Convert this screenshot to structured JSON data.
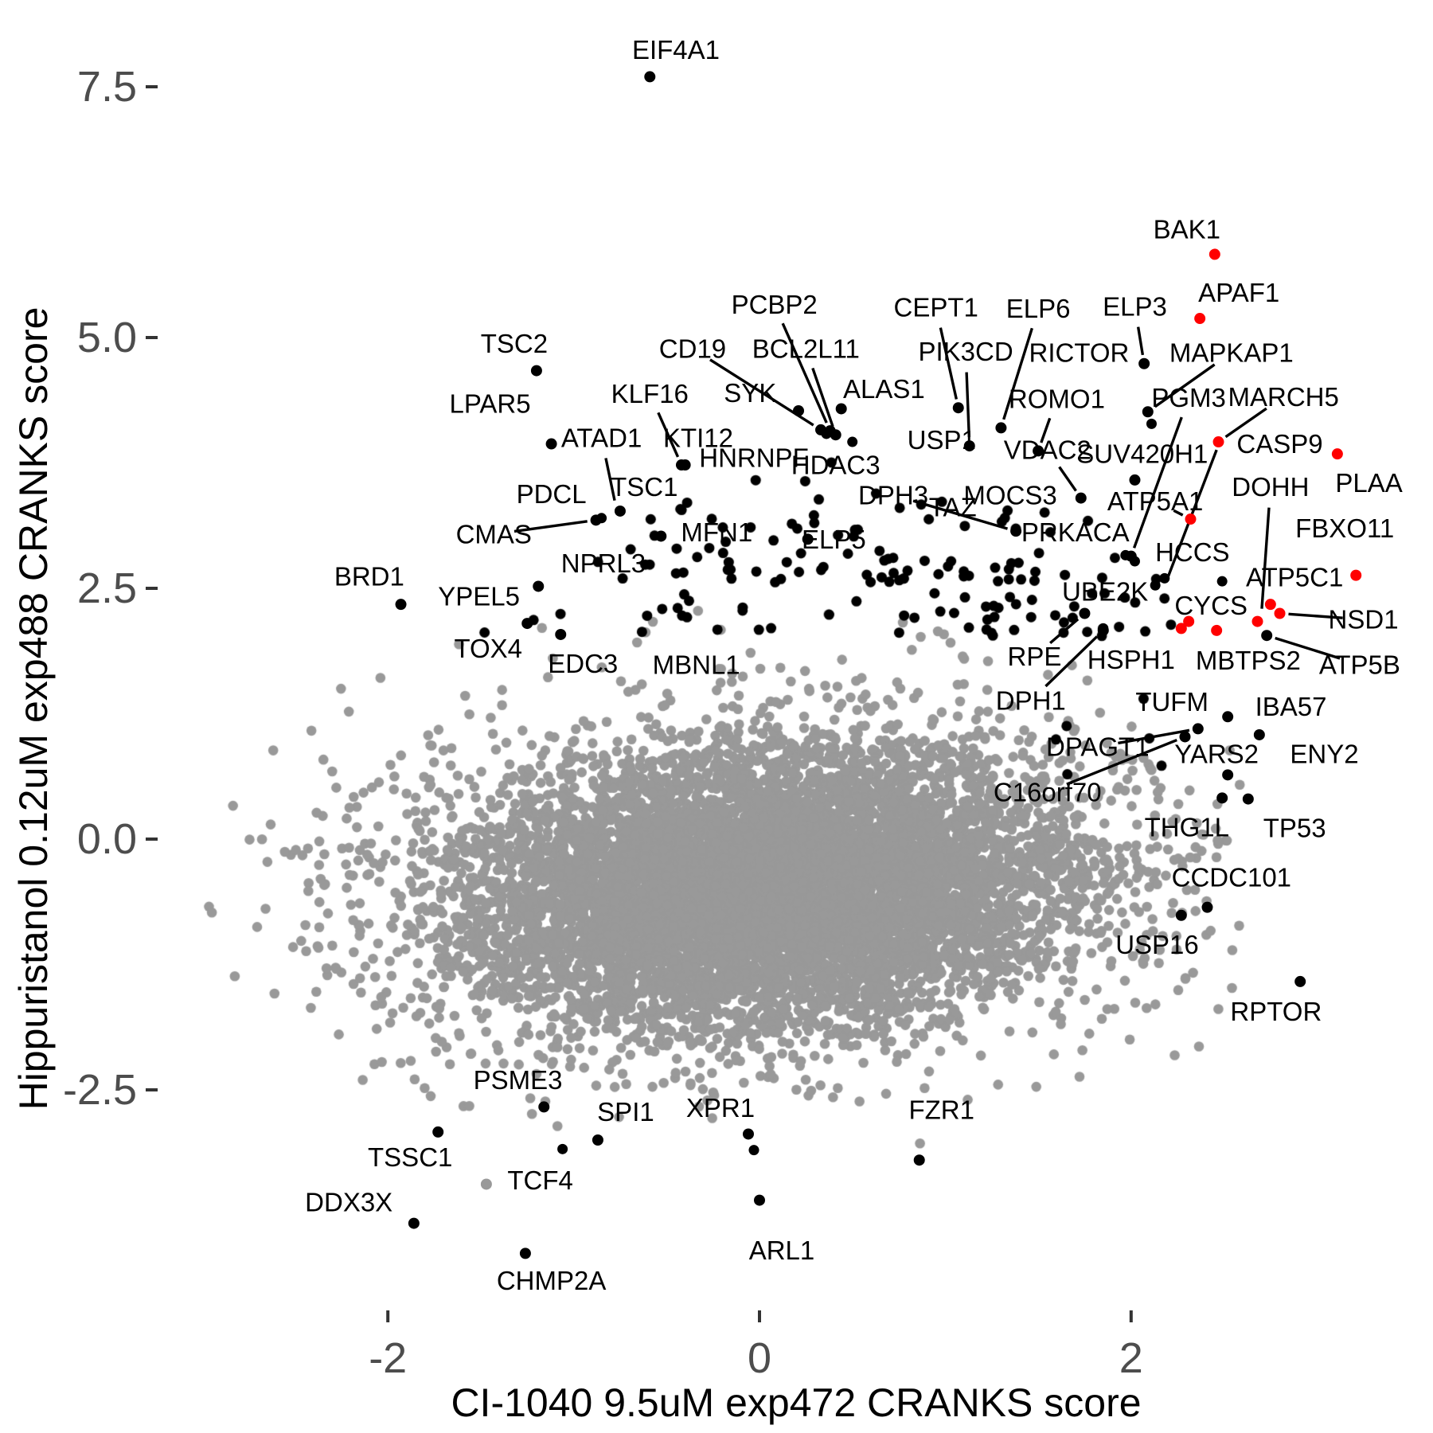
{
  "chart_data": {
    "type": "scatter",
    "title": "",
    "xlabel": "CI-1040 9.5uM exp472 CRANKS score",
    "ylabel": "Hippuristanol 0.12uM exp488 CRANKS score",
    "x_ticks": [
      -2,
      0,
      2
    ],
    "y_ticks": [
      -2.5,
      0.0,
      2.5,
      5.0,
      7.5
    ],
    "x_range": [
      -3.2,
      3.6
    ],
    "y_range": [
      -4.7,
      7.95
    ],
    "grid": false,
    "legend": "none",
    "colors": {
      "background_points": "#999999",
      "hit_points": "#000000",
      "selected_points": "#FF0000",
      "tick_text": "#4D4D4D",
      "tick_mark": "#333333",
      "axis_title": "#000000",
      "label_text": "#000000"
    },
    "labeled_points": [
      {
        "name": "EIF4A1",
        "label": [
          -0.45,
          7.87
        ],
        "dot": [
          -0.59,
          7.6
        ],
        "color": "black",
        "line": false
      },
      {
        "name": "BAK1",
        "label": [
          2.3,
          6.08
        ],
        "dot": [
          2.45,
          5.83
        ],
        "color": "red",
        "line": false
      },
      {
        "name": "APAF1",
        "label": [
          2.58,
          5.45
        ],
        "dot": [
          2.37,
          5.19
        ],
        "color": "red",
        "line": false
      },
      {
        "name": "TSC2",
        "label": [
          -1.32,
          4.94
        ],
        "dot": [
          -1.2,
          4.67
        ],
        "color": "black",
        "line": false
      },
      {
        "name": "PCBP2",
        "label": [
          0.08,
          5.33
        ],
        "dot": [
          0.38,
          4.07
        ],
        "color": "black",
        "line": true
      },
      {
        "name": "CEPT1",
        "label": [
          0.95,
          5.3
        ],
        "dot": [
          1.07,
          4.3
        ],
        "color": "black",
        "line": true
      },
      {
        "name": "ELP6",
        "label": [
          1.5,
          5.29
        ],
        "dot": [
          1.3,
          4.1
        ],
        "color": "black",
        "line": true
      },
      {
        "name": "ELP3",
        "label": [
          2.02,
          5.31
        ],
        "dot": [
          2.07,
          4.74
        ],
        "color": "black",
        "line": true
      },
      {
        "name": "CD19",
        "label": [
          -0.36,
          4.89
        ],
        "dot": [
          0.33,
          4.08
        ],
        "color": "black",
        "line": true
      },
      {
        "name": "BCL2L11",
        "label": [
          0.25,
          4.89
        ],
        "dot": [
          0.41,
          4.03
        ],
        "color": "black",
        "line": true
      },
      {
        "name": "PIK3CD",
        "label": [
          1.11,
          4.86
        ],
        "dot": [
          1.13,
          3.92
        ],
        "color": "black",
        "line": true
      },
      {
        "name": "RICTOR",
        "label": [
          1.72,
          4.85
        ],
        "dot": null,
        "color": "black",
        "line": false
      },
      {
        "name": "MAPKAP1",
        "label": [
          2.54,
          4.85
        ],
        "dot": [
          2.09,
          4.26
        ],
        "color": "black",
        "line": true
      },
      {
        "name": "SYK",
        "label": [
          -0.05,
          4.45
        ],
        "dot": [
          0.21,
          4.27
        ],
        "color": "black",
        "line": false
      },
      {
        "name": "ALAS1",
        "label": [
          0.67,
          4.49
        ],
        "dot": [
          0.44,
          4.29
        ],
        "color": "black",
        "line": false
      },
      {
        "name": "KLF16",
        "label": [
          -0.59,
          4.44
        ],
        "dot": [
          -0.42,
          3.73
        ],
        "color": "black",
        "line": true
      },
      {
        "name": "LPAR5",
        "label": [
          -1.45,
          4.34
        ],
        "dot": null,
        "color": "black",
        "line": false
      },
      {
        "name": "ROMO1",
        "label": [
          1.6,
          4.39
        ],
        "dot": [
          1.5,
          3.87
        ],
        "color": "black",
        "line": true
      },
      {
        "name": "PGM3",
        "label": [
          2.31,
          4.4
        ],
        "dot": [
          2.0,
          2.82
        ],
        "color": "black",
        "line": true
      },
      {
        "name": "MARCH5",
        "label": [
          2.82,
          4.41
        ],
        "dot": null,
        "color": "black",
        "line": true,
        "line_to": [
          2.47,
          3.96
        ]
      },
      {
        "name": "ATAD1",
        "label": [
          -0.85,
          4.0
        ],
        "dot": [
          -1.12,
          3.94
        ],
        "color": "black",
        "line": true,
        "line_to": [
          -0.77,
          3.29
        ]
      },
      {
        "name": "KTI12",
        "label": [
          -0.33,
          4.0
        ],
        "dot": [
          -0.4,
          3.73
        ],
        "color": "black",
        "line": false
      },
      {
        "name": "USP1",
        "label": [
          0.98,
          3.98
        ],
        "dot": null,
        "color": "black",
        "line": false
      },
      {
        "name": "VDAC2",
        "label": [
          1.55,
          3.88
        ],
        "dot": [
          1.73,
          3.4
        ],
        "color": "black",
        "line": true
      },
      {
        "name": "SUV420H1",
        "label": [
          2.06,
          3.84
        ],
        "dot": [
          2.02,
          3.58
        ],
        "color": "black",
        "line": false
      },
      {
        "name": "CASP9",
        "label": [
          2.8,
          3.94
        ],
        "dot": [
          2.47,
          3.96
        ],
        "color": "red",
        "line": false
      },
      {
        "name": "HNRNPF",
        "label": [
          -0.03,
          3.8
        ],
        "dot": null,
        "color": "black",
        "line": false
      },
      {
        "name": "HDAC3",
        "label": [
          0.41,
          3.73
        ],
        "dot": null,
        "color": "black",
        "line": false
      },
      {
        "name": "PDCL",
        "label": [
          -1.12,
          3.44
        ],
        "dot": null,
        "color": "black",
        "line": false
      },
      {
        "name": "TSC1",
        "label": [
          -0.62,
          3.51
        ],
        "dot": [
          -0.75,
          3.27
        ],
        "color": "black",
        "line": false
      },
      {
        "name": "CMAS",
        "label": [
          -1.43,
          3.04
        ],
        "dot": [
          -0.88,
          3.18
        ],
        "color": "black",
        "line": true
      },
      {
        "name": "DPH3",
        "label": [
          0.72,
          3.43
        ],
        "dot": [
          1.38,
          3.07
        ],
        "color": "black",
        "line": true
      },
      {
        "name": "TAZ",
        "label": [
          1.04,
          3.31
        ],
        "dot": null,
        "color": "black",
        "line": false
      },
      {
        "name": "MOCS3",
        "label": [
          1.35,
          3.43
        ],
        "dot": null,
        "color": "black",
        "line": false
      },
      {
        "name": "DOHH",
        "label": [
          2.75,
          3.51
        ],
        "dot": null,
        "color": "black",
        "line": true,
        "line_to": [
          2.7,
          2.21
        ]
      },
      {
        "name": "PLAA",
        "label": [
          3.28,
          3.55
        ],
        "dot": [
          3.11,
          3.84
        ],
        "color": "red",
        "line": false
      },
      {
        "name": "FBXO11",
        "label": [
          3.15,
          3.1
        ],
        "dot": null,
        "color": "black",
        "line": false
      },
      {
        "name": "ATP5A1",
        "label": [
          2.13,
          3.37
        ],
        "dot": [
          2.32,
          3.19
        ],
        "color": "red",
        "line": true
      },
      {
        "name": "MFN1",
        "label": [
          -0.23,
          3.06
        ],
        "dot": [
          -0.53,
          3.02
        ],
        "color": "black",
        "line": false
      },
      {
        "name": "ELP5",
        "label": [
          0.4,
          2.99
        ],
        "dot": [
          0.26,
          2.99
        ],
        "color": "black",
        "line": false
      },
      {
        "name": "PRKACA",
        "label": [
          1.7,
          3.06
        ],
        "dot": null,
        "color": "black",
        "line": false
      },
      {
        "name": "HCCS",
        "label": [
          2.33,
          2.86
        ],
        "dot": null,
        "color": "black",
        "line": false
      },
      {
        "name": "NPRL3",
        "label": [
          -0.84,
          2.75
        ],
        "dot": null,
        "color": "black",
        "line": false
      },
      {
        "name": "BRD1",
        "label": [
          -2.1,
          2.62
        ],
        "dot": [
          -1.93,
          2.34
        ],
        "color": "black",
        "line": false
      },
      {
        "name": "YPEL5",
        "label": [
          -1.51,
          2.42
        ],
        "dot": [
          -1.19,
          2.52
        ],
        "color": "black",
        "line": false
      },
      {
        "name": "ATP5C1",
        "label": [
          2.88,
          2.61
        ],
        "dot": [
          3.21,
          2.63
        ],
        "color": "red",
        "line": false
      },
      {
        "name": "CYCS",
        "label": [
          2.43,
          2.33
        ],
        "dot": null,
        "color": "black",
        "line": false
      },
      {
        "name": "NSD1",
        "label": [
          3.25,
          2.19
        ],
        "dot": null,
        "color": "black",
        "line": true,
        "line_to": [
          2.8,
          2.25
        ]
      },
      {
        "name": "UBE2K",
        "label": [
          1.86,
          2.47
        ],
        "dot": null,
        "color": "black",
        "line": false
      },
      {
        "name": "RPE",
        "label": [
          1.48,
          1.82
        ],
        "dot": [
          1.75,
          2.25
        ],
        "color": "black",
        "line": true
      },
      {
        "name": "HSPH1",
        "label": [
          2.0,
          1.79
        ],
        "dot": null,
        "color": "black",
        "line": false
      },
      {
        "name": "MBTPS2",
        "label": [
          2.63,
          1.78
        ],
        "dot": null,
        "color": "black",
        "line": false
      },
      {
        "name": "ATP5B",
        "label": [
          3.23,
          1.74
        ],
        "dot": [
          2.73,
          2.03
        ],
        "color": "black",
        "line": true
      },
      {
        "name": "TOX4",
        "label": [
          -1.46,
          1.9
        ],
        "dot": [
          -1.25,
          2.15
        ],
        "color": "black",
        "line": false
      },
      {
        "name": "EDC3",
        "label": [
          -0.95,
          1.75
        ],
        "dot": [
          -1.07,
          2.04
        ],
        "color": "black",
        "line": false
      },
      {
        "name": "MBNL1",
        "label": [
          -0.34,
          1.74
        ],
        "dot": null,
        "color": "black",
        "line": false
      },
      {
        "name": "DPH1",
        "label": [
          1.46,
          1.38
        ],
        "dot": [
          1.85,
          2.08
        ],
        "color": "black",
        "line": true
      },
      {
        "name": "TUFM",
        "label": [
          2.22,
          1.37
        ],
        "dot": [
          2.52,
          1.22
        ],
        "color": "black",
        "line": false
      },
      {
        "name": "IBA57",
        "label": [
          2.86,
          1.32
        ],
        "dot": [
          2.69,
          1.04
        ],
        "color": "black",
        "line": false
      },
      {
        "name": "DPAGT1",
        "label": [
          1.82,
          0.92
        ],
        "dot": [
          2.36,
          1.1
        ],
        "color": "black",
        "line": true
      },
      {
        "name": "C16orf70",
        "label": [
          1.55,
          0.47
        ],
        "dot": [
          2.29,
          1.02
        ],
        "color": "black",
        "line": true
      },
      {
        "name": "YARS2",
        "label": [
          2.46,
          0.85
        ],
        "dot": [
          2.52,
          0.64
        ],
        "color": "black",
        "line": false
      },
      {
        "name": "ENY2",
        "label": [
          3.04,
          0.85
        ],
        "dot": null,
        "color": "black",
        "line": false
      },
      {
        "name": "THG1L",
        "label": [
          2.3,
          0.12
        ],
        "dot": [
          2.49,
          0.41
        ],
        "color": "black",
        "line": false
      },
      {
        "name": "TP53",
        "label": [
          2.88,
          0.11
        ],
        "dot": [
          2.63,
          0.4
        ],
        "color": "black",
        "line": false
      },
      {
        "name": "CCDC101",
        "label": [
          2.54,
          -0.38
        ],
        "dot": [
          2.41,
          -0.68
        ],
        "color": "black",
        "line": false
      },
      {
        "name": "USP16",
        "label": [
          2.14,
          -1.05
        ],
        "dot": [
          2.27,
          -0.76
        ],
        "color": "black",
        "line": false
      },
      {
        "name": "RPTOR",
        "label": [
          2.78,
          -1.72
        ],
        "dot": [
          2.91,
          -1.42
        ],
        "color": "black",
        "line": false
      },
      {
        "name": "PSME3",
        "label": [
          -1.3,
          -2.4
        ],
        "dot": [
          -1.16,
          -2.67
        ],
        "color": "black",
        "line": false
      },
      {
        "name": "SPI1",
        "label": [
          -0.72,
          -2.72
        ],
        "dot": [
          -0.87,
          -3.0
        ],
        "color": "black",
        "line": false
      },
      {
        "name": "XPR1",
        "label": [
          -0.21,
          -2.68
        ],
        "dot": [
          -0.06,
          -2.94
        ],
        "color": "black",
        "line": false
      },
      {
        "name": "ARL1",
        "label": [
          0.12,
          -4.1
        ],
        "dot": [
          0.0,
          -3.6
        ],
        "color": "black",
        "line": false
      },
      {
        "name": "FZR1",
        "label": [
          0.98,
          -2.7
        ],
        "dot": [
          0.86,
          -3.2
        ],
        "color": "black",
        "line": false
      },
      {
        "name": "TSSC1",
        "label": [
          -1.88,
          -3.17
        ],
        "dot": [
          -1.73,
          -2.92
        ],
        "color": "black",
        "line": false
      },
      {
        "name": "TCF4",
        "label": [
          -1.18,
          -3.4
        ],
        "dot": [
          -1.47,
          -3.44
        ],
        "color": "gray",
        "line": false
      },
      {
        "name": "DDX3X",
        "label": [
          -2.21,
          -3.62
        ],
        "dot": [
          -1.86,
          -3.83
        ],
        "color": "black",
        "line": false
      },
      {
        "name": "CHMP2A",
        "label": [
          -1.12,
          -4.4
        ],
        "dot": [
          -1.26,
          -4.13
        ],
        "color": "black",
        "line": false
      }
    ],
    "extra_red_points": [
      [
        2.75,
        2.34
      ],
      [
        2.8,
        2.25
      ],
      [
        2.68,
        2.17
      ],
      [
        2.31,
        2.17
      ],
      [
        2.27,
        2.1
      ],
      [
        2.46,
        2.08
      ]
    ],
    "extra_black_points": [
      [
        2.11,
        4.14
      ],
      [
        0.36,
        4.04
      ],
      [
        0.5,
        3.96
      ],
      [
        -0.85,
        3.2
      ],
      [
        2.18,
        2.6
      ],
      [
        2.13,
        2.53
      ],
      [
        2.49,
        2.57
      ],
      [
        1.85,
        2.1
      ],
      [
        1.97,
        2.83
      ],
      [
        2.02,
        2.77
      ],
      [
        -1.06,
        -3.09
      ],
      [
        -0.03,
        -3.1
      ]
    ],
    "extra_lines": [
      [
        2.46,
        3.88,
        2.2,
        2.62
      ]
    ],
    "background_cloud": {
      "color": "#999999",
      "radius": 6.3,
      "seed": 91,
      "clip": {
        "xmin": -3.0,
        "xmax": 2.62,
        "ymin": -3.2,
        "ymax": 2.45
      },
      "layers": [
        {
          "n": 6200,
          "cx": 0.02,
          "cy": -0.5,
          "sx": 0.8,
          "sy": 0.68,
          "rho": 0.18,
          "max_sigma": 2.4
        },
        {
          "n": 2600,
          "cx": 0.0,
          "cy": -0.45,
          "sx": 1.12,
          "sy": 0.95,
          "rho": 0.15,
          "max_sigma": 2.3
        },
        {
          "n": 900,
          "cx": 0.0,
          "cy": -0.4,
          "sx": 1.42,
          "sy": 1.25,
          "rho": 0.1,
          "max_sigma": 2.2
        }
      ]
    },
    "hit_band": {
      "color": "#000000",
      "radius": 6.5,
      "seed": 7,
      "xmin": -1.48,
      "xmax": 2.3,
      "groups": [
        {
          "n": 70,
          "cx": 0.25,
          "sx": 0.55,
          "y0": 2.55,
          "sy": 0.55,
          "ymax": 4.45
        },
        {
          "n": 55,
          "cx": 1.55,
          "sx": 0.5,
          "y0": 2.02,
          "sy": 0.55,
          "ymax": 4.0
        },
        {
          "n": 28,
          "cx": -0.35,
          "sx": 0.7,
          "y0": 2.05,
          "sy": 0.38,
          "ymax": 3.2
        },
        {
          "n": 8,
          "cx": 2.18,
          "sx": 0.28,
          "y0": 0.55,
          "sy": 0.45,
          "ymax": 1.9
        }
      ]
    },
    "point_radius": {
      "labeled": 7,
      "red": 7,
      "gray": 6.3,
      "black_band": 6.5
    },
    "font_sizes": {
      "gene_label": 33,
      "tick_label": 54,
      "axis_title": 50
    }
  }
}
